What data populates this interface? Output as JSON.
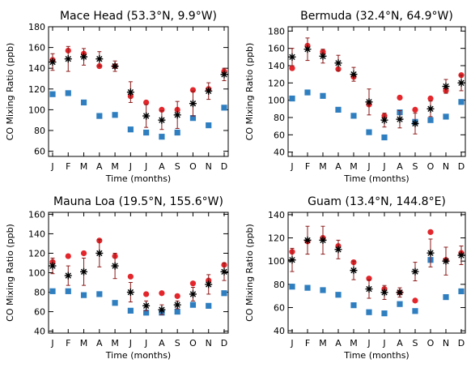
{
  "chart_data": [
    {
      "type": "scatter",
      "title": "Mace Head (53.3°N, 9.9°W)",
      "xlabel": "Time (months)",
      "ylabel": "CO Mixing Ratio (ppb)",
      "categories": [
        "J",
        "F",
        "M",
        "A",
        "M",
        "J",
        "J",
        "A",
        "S",
        "O",
        "N",
        "D"
      ],
      "ylim": [
        55,
        180
      ],
      "yticks": [
        60,
        80,
        100,
        120,
        140,
        160,
        180
      ],
      "xlim": [
        0,
        11
      ],
      "series": [
        {
          "marker": "circle",
          "color": "#e3262b",
          "x": [
            0,
            1,
            2,
            3,
            4,
            5,
            6,
            7,
            8,
            9,
            10,
            11
          ],
          "y": [
            148,
            157,
            154,
            142,
            142,
            113,
            107,
            100,
            100,
            119,
            120,
            137
          ]
        },
        {
          "marker": "square",
          "color": "#2f7fc0",
          "x": [
            0,
            1,
            2,
            3,
            4,
            5,
            6,
            7,
            8,
            9,
            10,
            11
          ],
          "y": [
            115,
            116,
            107,
            94,
            95,
            81,
            78,
            74,
            78,
            92,
            85,
            102
          ]
        },
        {
          "marker": "star",
          "color": "#000000",
          "x": [
            0,
            1,
            2,
            3,
            4,
            5,
            6,
            7,
            8,
            9,
            10,
            11
          ],
          "y": [
            146,
            149,
            151,
            149,
            142,
            117,
            94,
            90,
            95,
            106,
            118,
            134
          ],
          "yerr": [
            8,
            12,
            8,
            7,
            5,
            10,
            11,
            9,
            13,
            12,
            8,
            6
          ]
        }
      ]
    },
    {
      "type": "scatter",
      "title": "Bermuda (32.4°N, 64.9°W)",
      "xlabel": "Time (months)",
      "ylabel": "CO Mixing Ratio (ppb)",
      "categories": [
        "J",
        "F",
        "M",
        "A",
        "M",
        "J",
        "J",
        "A",
        "S",
        "O",
        "N",
        "D"
      ],
      "ylim": [
        35,
        185
      ],
      "yticks": [
        40,
        60,
        80,
        100,
        120,
        140,
        160,
        180
      ],
      "xlim": [
        0,
        11
      ],
      "series": [
        {
          "marker": "circle",
          "color": "#e3262b",
          "x": [
            0,
            1,
            2,
            3,
            4,
            5,
            6,
            7,
            8,
            9,
            10,
            11
          ],
          "y": [
            137,
            163,
            156,
            136,
            127,
            95,
            82,
            103,
            89,
            102,
            111,
            129
          ]
        },
        {
          "marker": "square",
          "color": "#2f7fc0",
          "x": [
            0,
            1,
            2,
            3,
            4,
            5,
            6,
            7,
            8,
            9,
            10,
            11
          ],
          "y": [
            102,
            109,
            105,
            89,
            82,
            63,
            57,
            86,
            75,
            77,
            81,
            98
          ]
        },
        {
          "marker": "star",
          "color": "#000000",
          "x": [
            0,
            1,
            2,
            3,
            4,
            5,
            6,
            7,
            8,
            9,
            10,
            11
          ],
          "y": [
            150,
            159,
            151,
            143,
            130,
            98,
            77,
            78,
            73,
            90,
            116,
            120
          ],
          "yerr": [
            10,
            13,
            8,
            9,
            8,
            15,
            8,
            10,
            12,
            9,
            8,
            9
          ]
        }
      ]
    },
    {
      "type": "scatter",
      "title": "Mauna Loa (19.5°N, 155.6°W)",
      "xlabel": "Time (months)",
      "ylabel": "CO Mixing Ratio (ppb)",
      "categories": [
        "J",
        "F",
        "M",
        "A",
        "M",
        "J",
        "J",
        "A",
        "S",
        "O",
        "N",
        "D"
      ],
      "ylim": [
        38,
        162
      ],
      "yticks": [
        40,
        60,
        80,
        100,
        120,
        140,
        160
      ],
      "xlim": [
        0,
        11
      ],
      "series": [
        {
          "marker": "circle",
          "color": "#e3262b",
          "x": [
            0,
            1,
            2,
            3,
            4,
            5,
            6,
            7,
            8,
            9,
            10,
            11
          ],
          "y": [
            111,
            117,
            120,
            133,
            117,
            96,
            78,
            79,
            76,
            89,
            92,
            108
          ]
        },
        {
          "marker": "square",
          "color": "#2f7fc0",
          "x": [
            0,
            1,
            2,
            3,
            4,
            5,
            6,
            7,
            8,
            9,
            10,
            11
          ],
          "y": [
            81,
            81,
            77,
            78,
            69,
            61,
            59,
            59,
            60,
            67,
            66,
            79
          ]
        },
        {
          "marker": "star",
          "color": "#000000",
          "x": [
            0,
            1,
            2,
            3,
            4,
            5,
            6,
            7,
            8,
            9,
            10,
            11
          ],
          "y": [
            107,
            97,
            101,
            120,
            107,
            80,
            66,
            62,
            67,
            78,
            88,
            101
          ],
          "yerr": [
            8,
            10,
            14,
            14,
            13,
            10,
            5,
            5,
            4,
            7,
            10,
            9
          ]
        }
      ]
    },
    {
      "type": "scatter",
      "title": "Guam (13.4°N, 144.8°E)",
      "xlabel": "Time (months)",
      "ylabel": "CO Mixing Ratio (ppb)",
      "categories": [
        "J",
        "F",
        "M",
        "A",
        "M",
        "J",
        "J",
        "A",
        "S",
        "O",
        "N",
        "D"
      ],
      "ylim": [
        38,
        142
      ],
      "yticks": [
        40,
        60,
        80,
        100,
        120,
        140
      ],
      "xlim": [
        0,
        11
      ],
      "series": [
        {
          "marker": "circle",
          "color": "#e3262b",
          "x": [
            0,
            1,
            2,
            3,
            4,
            5,
            6,
            7,
            8,
            9,
            10,
            11
          ],
          "y": [
            108,
            117,
            120,
            113,
            99,
            85,
            76,
            73,
            66,
            125,
            101,
            107
          ]
        },
        {
          "marker": "square",
          "color": "#2f7fc0",
          "x": [
            0,
            1,
            2,
            3,
            4,
            5,
            6,
            7,
            8,
            9,
            10,
            11
          ],
          "y": [
            78,
            77,
            75,
            71,
            62,
            56,
            55,
            63,
            57,
            101,
            69,
            74
          ]
        },
        {
          "marker": "star",
          "color": "#000000",
          "x": [
            0,
            1,
            2,
            3,
            4,
            5,
            6,
            7,
            8,
            9,
            10,
            11
          ],
          "y": [
            101,
            118,
            118,
            110,
            92,
            76,
            73,
            73,
            91,
            107,
            100,
            105
          ],
          "yerr": [
            10,
            12,
            12,
            8,
            8,
            8,
            6,
            4,
            8,
            12,
            12,
            8
          ]
        }
      ]
    }
  ]
}
